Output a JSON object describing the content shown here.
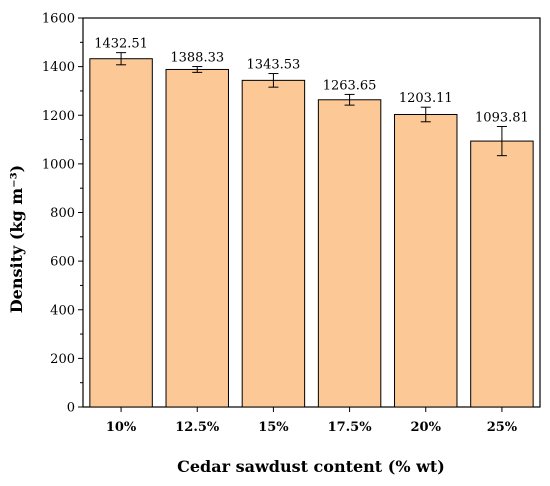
{
  "chart_data": {
    "type": "bar",
    "categories": [
      "10%",
      "12.5%",
      "15%",
      "17.5%",
      "20%",
      "25%"
    ],
    "values": [
      1432.51,
      1388.33,
      1343.53,
      1263.65,
      1203.11,
      1093.81
    ],
    "errors": [
      25,
      12,
      28,
      22,
      30,
      60
    ],
    "data_labels": [
      "1432.51",
      "1388.33",
      "1343.53",
      "1263.65",
      "1203.11",
      "1093.81"
    ],
    "xlabel": "Cedar sawdust content (% wt)",
    "ylabel": "Density (kg m⁻³)",
    "ylim": [
      0,
      1600
    ],
    "yticks": [
      0,
      200,
      400,
      600,
      800,
      1000,
      1200,
      1400,
      1600
    ],
    "grid": false,
    "bar_color": "#fcc896",
    "edge_color": "#000000"
  }
}
